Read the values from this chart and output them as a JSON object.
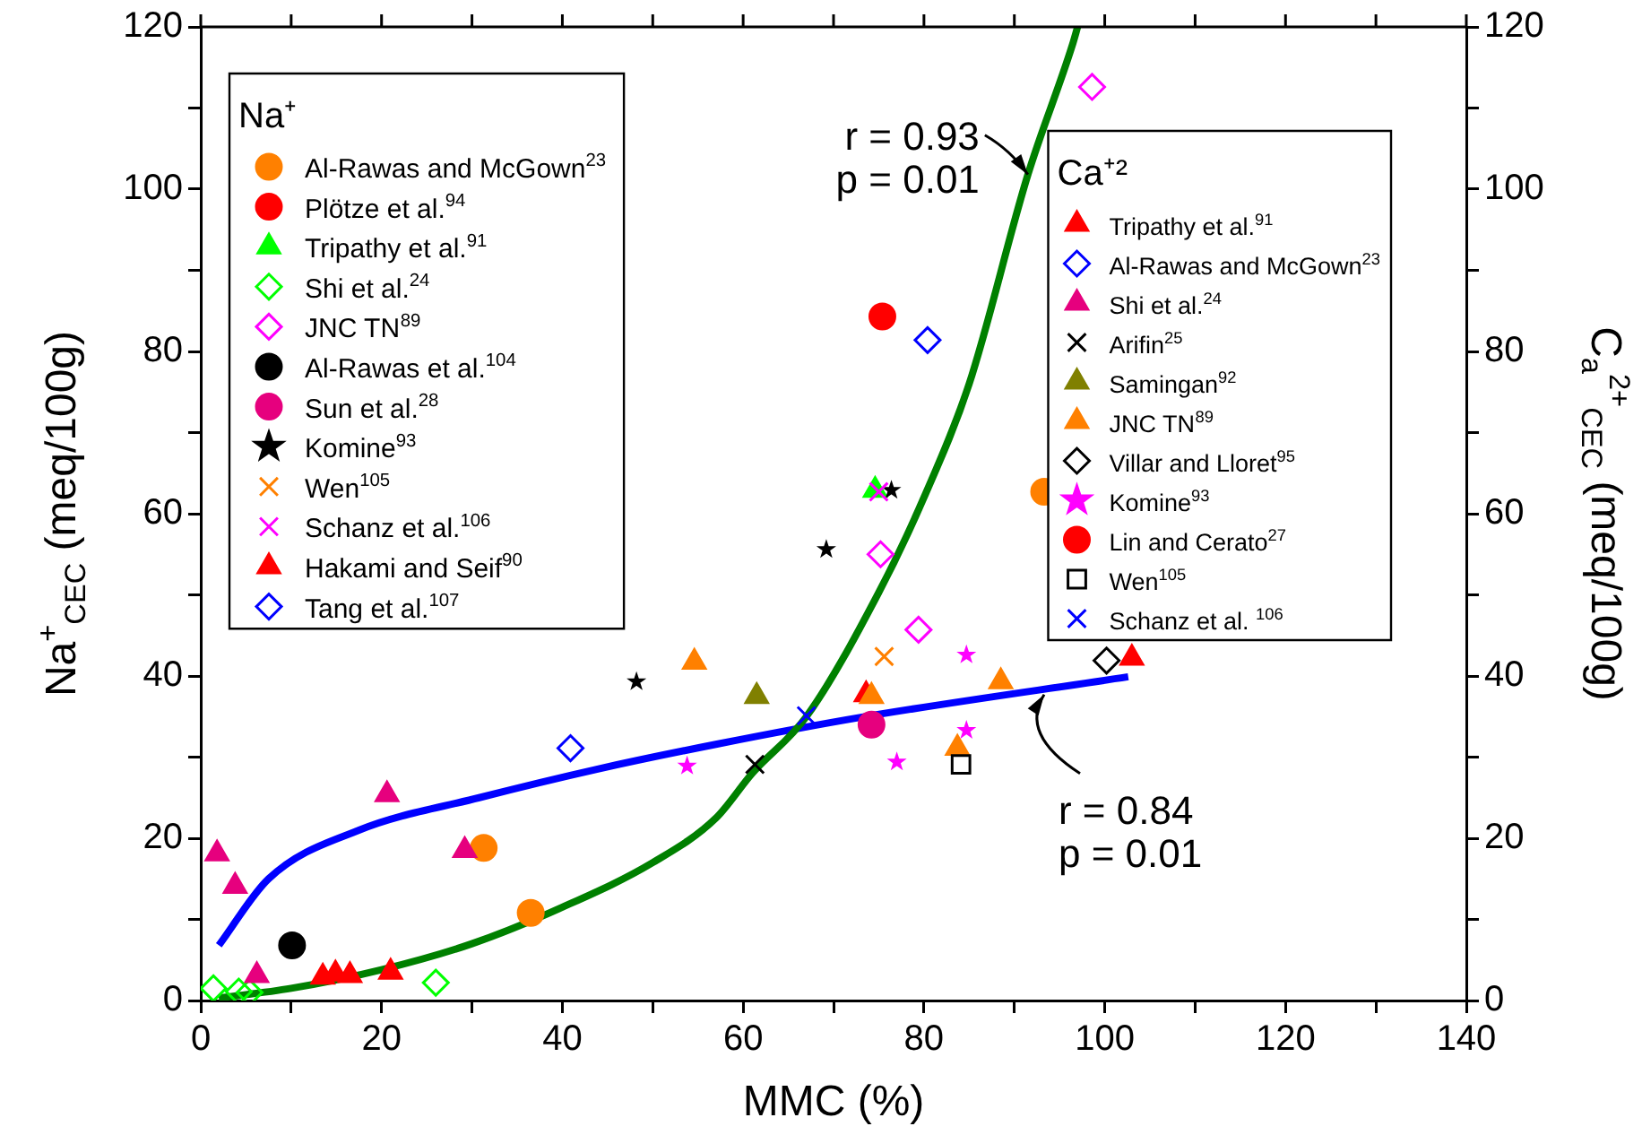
{
  "chart_data": {
    "type": "scatter",
    "xlabel": "MMC (%)",
    "ylabel": "Na$^{+}$$_{CEC}$ (meq/100g)",
    "y2label": "C$_{a}$$^{2+}$$_{CEC}$ (meq/100g)",
    "legend": "top",
    "legend_title": [
      "Na⁺",
      "Ca⁺²"
    ],
    "xlim": [
      0,
      140
    ],
    "xticks": [
      0,
      {
        "value": 10,
        "label": null
      },
      20,
      {
        "value": 30,
        "label": null
      },
      40,
      {
        "value": 50,
        "label": null
      },
      60,
      {
        "value": 70,
        "label": null
      },
      80,
      {
        "value": 90,
        "label": null
      },
      100,
      {
        "value": 110,
        "label": null
      },
      120,
      {
        "value": 130,
        "label": null
      },
      140
    ],
    "ylim": [
      0,
      120
    ],
    "yticks": [
      0,
      {
        "value": 10,
        "label": null
      },
      20,
      {
        "value": 30,
        "label": null
      },
      40,
      {
        "value": 50,
        "label": null
      },
      60,
      {
        "value": 70,
        "label": null
      },
      80,
      {
        "value": 90,
        "label": null
      },
      100,
      {
        "value": 110,
        "label": null
      },
      120
    ],
    "y2lim": [
      0,
      120
    ],
    "y2ticks": [
      0,
      {
        "value": 10,
        "label": null
      },
      20,
      {
        "value": 30,
        "label": null
      },
      40,
      {
        "value": 50,
        "label": null
      },
      60,
      {
        "value": 70,
        "label": null
      },
      80,
      {
        "value": 90,
        "label": null
      },
      100,
      {
        "value": 110,
        "label": null
      },
      120
    ],
    "grid": false,
    "annotations": [
      {
        "text": "r = 0.93\np = 0.01",
        "x": 91.5,
        "y": 101.8
      },
      {
        "text": "r = 0.84\np = 0.01",
        "x": 93.3,
        "y": 37.7
      }
    ],
    "series": [
      {
        "type": "line",
        "color": "#008000",
        "marker": "none",
        "x": [
          2,
          10,
          20,
          30,
          40,
          50,
          57,
          61,
          67,
          75,
          80,
          85,
          91.5,
          96.4,
          97
        ],
        "values": [
          0.3,
          1.5,
          3.8,
          7,
          11.5,
          17,
          22.5,
          28,
          35,
          50.3,
          62,
          76,
          101.8,
          117.7,
          120
        ]
      },
      {
        "type": "line",
        "axis": "y2",
        "color": "#0000ff",
        "marker": "none",
        "x": [
          2,
          7.5,
          17.5,
          30.8,
          43.8,
          57.1,
          73,
          102.6
        ],
        "values": [
          6.8,
          15,
          21,
          25,
          28.5,
          31.6,
          34.9,
          39.9
        ]
      },
      {
        "name": "Al-Rawas and McGown$^{23}$",
        "color": "#ff8000",
        "marker": "circle",
        "x": [
          31.3,
          36.5,
          93.3
        ],
        "values": [
          18.8,
          10.8,
          62.7
        ]
      },
      {
        "name": "Plötze et al.$^{94}$",
        "color": "#ff0000",
        "marker": "circle",
        "x": [
          75.4
        ],
        "values": [
          84.3
        ]
      },
      {
        "name": "Tripathy et al.$^{91}$",
        "color": "#00ff00",
        "marker": "triangle",
        "x": [
          74.6
        ],
        "values": [
          62.9
        ]
      },
      {
        "name": "Shi et al.$^{24}$",
        "color": "#00ff00",
        "marker": "diamond",
        "x": [
          1.4,
          4.2,
          5.4,
          26
        ],
        "values": [
          1.5,
          1.1,
          1,
          2.2
        ]
      },
      {
        "name": "JNC TN$^{89}$",
        "color": "#ff00ff",
        "marker": "diamond",
        "x": [
          98.6,
          75.2,
          79.4
        ],
        "values": [
          112.6,
          55,
          45.7
        ]
      },
      {
        "name": "Al-Rawas et al.$^{104}$",
        "color": "#000000",
        "marker": "circle",
        "x": [
          10.1
        ],
        "values": [
          6.8
        ]
      },
      {
        "name": "Sun et al.$^{28}$",
        "color": "#e6007e",
        "marker": "circle",
        "x": [
          74.2
        ],
        "values": [
          34
        ]
      },
      {
        "name": "Komine$^{93}$",
        "color": "#000000",
        "marker": "star",
        "x": [
          69.2,
          76.4,
          48.2
        ],
        "values": [
          55.6,
          62.9,
          39.3
        ]
      },
      {
        "name": "Wen$^{105}$",
        "color": "#ff8000",
        "marker": "cross",
        "x": [
          75.6
        ],
        "values": [
          42.4
        ]
      },
      {
        "name": "Schanz et al.$^{106}$",
        "color": "#ff00ff",
        "marker": "cross",
        "x": [
          75
        ],
        "values": [
          62.7
        ]
      },
      {
        "name": "Hakami and Seif$^{90}$",
        "color": "#ff0000",
        "marker": "triangle",
        "x": [
          13.5,
          14.9,
          16.5,
          21
        ],
        "values": [
          2.9,
          3.3,
          3.1,
          3.5
        ]
      },
      {
        "name": "Tang et al.$^{107}$",
        "color": "#0000ff",
        "marker": "diamond",
        "x": [
          80.4
        ],
        "values": [
          81.4
        ]
      },
      {
        "name": "Tripathy et al.$^{91}$",
        "axis": "y2",
        "color": "#ff0000",
        "marker": "triangle",
        "x": [
          103,
          73.6
        ],
        "values": [
          42.2,
          37.7
        ]
      },
      {
        "name": "Al-Rawas and McGown$^{23}$",
        "axis": "y2",
        "color": "#0000ff",
        "marker": "diamond",
        "x": [
          40.9
        ],
        "values": [
          31.1
        ]
      },
      {
        "name": "Shi et al.$^{24}$",
        "axis": "y2",
        "color": "#e6007e",
        "marker": "triangle",
        "x": [
          1.8,
          3.8,
          20.6,
          29.2,
          6.2
        ],
        "values": [
          18.1,
          14.1,
          25.4,
          18.5,
          3.1
        ]
      },
      {
        "name": "Arifin$^{25}$",
        "axis": "y2",
        "color": "#000000",
        "marker": "cross",
        "x": [
          61.3
        ],
        "values": [
          29.1
        ]
      },
      {
        "name": "Samingan$^{92}$",
        "axis": "y2",
        "color": "#808000",
        "marker": "triangle",
        "x": [
          61.5
        ],
        "values": [
          37.5
        ]
      },
      {
        "name": "JNC TN$^{89}$",
        "axis": "y2",
        "color": "#ff8000",
        "marker": "triangle",
        "x": [
          54.6,
          88.5,
          74.2,
          83.7
        ],
        "values": [
          41.7,
          39.3,
          37.5,
          31.1
        ]
      },
      {
        "name": "Villar and Lloret$^{95}$",
        "axis": "y2",
        "color": "#000000",
        "marker": "diamond",
        "x": [
          100.2
        ],
        "values": [
          41.9
        ]
      },
      {
        "name": "Komine$^{93}$",
        "axis": "y2",
        "color": "#ff00ff",
        "marker": "star",
        "x": [
          53.8,
          84.7,
          84.7,
          77
        ],
        "values": [
          28.9,
          42.6,
          33.3,
          29.4
        ]
      },
      {
        "name": "Lin and Cerato$^{27}$",
        "axis": "y2",
        "color": "#ff0000",
        "marker": "circle"
      },
      {
        "name": "Wen$^{105}$",
        "axis": "y2",
        "color": "#000000",
        "marker": "square",
        "x": [
          84.1
        ],
        "values": [
          29.1
        ]
      },
      {
        "name": "Schanz et al. $^{106}$",
        "axis": "y2",
        "color": "#0000ff",
        "marker": "cross",
        "x": [
          67
        ],
        "values": [
          35.1
        ]
      }
    ]
  }
}
